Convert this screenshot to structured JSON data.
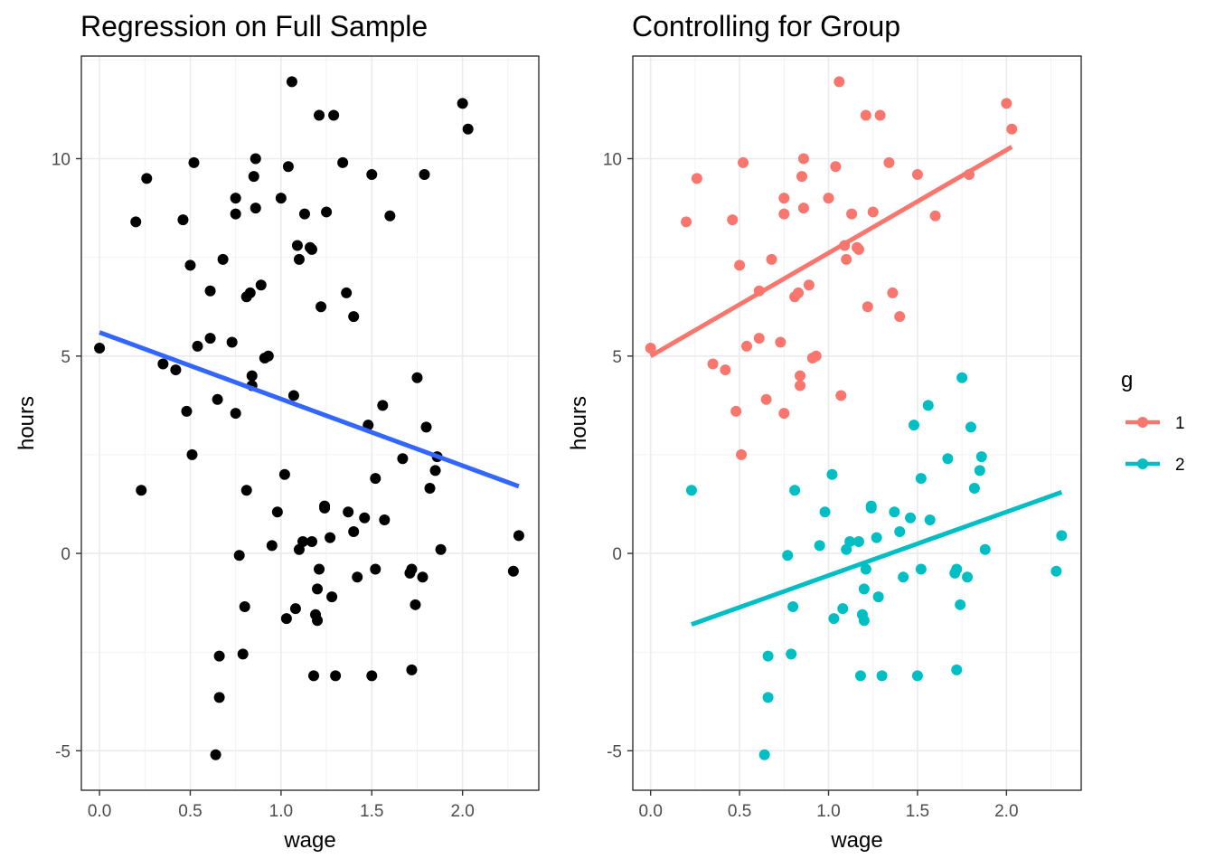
{
  "chart_data": [
    {
      "type": "scatter",
      "title": "Regression on Full Sample",
      "xlabel": "wage",
      "ylabel": "hours",
      "xlim": [
        -0.1,
        2.42
      ],
      "ylim": [
        -6.0,
        12.6
      ],
      "xticks": [
        0.0,
        0.5,
        1.0,
        1.5,
        2.0
      ],
      "xtick_labels": [
        "0.0",
        "0.5",
        "1.0",
        "1.5",
        "2.0"
      ],
      "yticks": [
        -5,
        0,
        5,
        10
      ],
      "ytick_labels": [
        "-5",
        "0",
        "5",
        "10"
      ],
      "grid": true,
      "point_color": "#000000",
      "line_color": "#3366FF",
      "points": [
        [
          0.0,
          5.2
        ],
        [
          0.2,
          8.4
        ],
        [
          0.23,
          1.6
        ],
        [
          0.26,
          9.5
        ],
        [
          0.35,
          4.8
        ],
        [
          0.42,
          4.65
        ],
        [
          0.46,
          8.45
        ],
        [
          0.48,
          3.6
        ],
        [
          0.5,
          7.3
        ],
        [
          0.51,
          2.5
        ],
        [
          0.52,
          9.9
        ],
        [
          0.54,
          5.25
        ],
        [
          0.61,
          6.65
        ],
        [
          0.61,
          5.45
        ],
        [
          0.64,
          -5.1
        ],
        [
          0.65,
          3.9
        ],
        [
          0.66,
          -2.6
        ],
        [
          0.66,
          -3.65
        ],
        [
          0.68,
          7.45
        ],
        [
          0.73,
          5.35
        ],
        [
          0.75,
          9.0
        ],
        [
          0.75,
          8.6
        ],
        [
          0.75,
          3.55
        ],
        [
          0.77,
          -0.05
        ],
        [
          0.79,
          -2.55
        ],
        [
          0.8,
          -1.35
        ],
        [
          0.81,
          6.5
        ],
        [
          0.81,
          1.6
        ],
        [
          0.83,
          6.6
        ],
        [
          0.84,
          4.5
        ],
        [
          0.84,
          4.25
        ],
        [
          0.85,
          9.55
        ],
        [
          0.86,
          10.0
        ],
        [
          0.86,
          8.75
        ],
        [
          0.89,
          6.8
        ],
        [
          0.91,
          4.95
        ],
        [
          0.93,
          5.0
        ],
        [
          0.95,
          0.2
        ],
        [
          0.98,
          1.05
        ],
        [
          1.0,
          9.0
        ],
        [
          1.02,
          2.0
        ],
        [
          1.03,
          -1.65
        ],
        [
          1.04,
          9.8
        ],
        [
          1.06,
          11.95
        ],
        [
          1.07,
          4.0
        ],
        [
          1.08,
          -1.4
        ],
        [
          1.09,
          7.8
        ],
        [
          1.1,
          7.45
        ],
        [
          1.1,
          0.1
        ],
        [
          1.12,
          0.3
        ],
        [
          1.13,
          8.6
        ],
        [
          1.16,
          7.75
        ],
        [
          1.17,
          7.7
        ],
        [
          1.17,
          0.3
        ],
        [
          1.18,
          -3.1
        ],
        [
          1.19,
          -1.55
        ],
        [
          1.2,
          -1.7
        ],
        [
          1.2,
          -0.9
        ],
        [
          1.21,
          -0.4
        ],
        [
          1.21,
          11.1
        ],
        [
          1.22,
          6.25
        ],
        [
          1.24,
          1.15
        ],
        [
          1.24,
          1.2
        ],
        [
          1.25,
          8.65
        ],
        [
          1.27,
          0.4
        ],
        [
          1.28,
          -1.1
        ],
        [
          1.29,
          11.1
        ],
        [
          1.3,
          -3.1
        ],
        [
          1.34,
          9.9
        ],
        [
          1.36,
          6.6
        ],
        [
          1.37,
          1.05
        ],
        [
          1.4,
          6.0
        ],
        [
          1.4,
          0.55
        ],
        [
          1.42,
          -0.6
        ],
        [
          1.46,
          0.9
        ],
        [
          1.48,
          3.25
        ],
        [
          1.5,
          9.6
        ],
        [
          1.5,
          -3.1
        ],
        [
          1.52,
          1.9
        ],
        [
          1.52,
          -0.4
        ],
        [
          1.56,
          3.75
        ],
        [
          1.57,
          0.85
        ],
        [
          1.6,
          8.55
        ],
        [
          1.67,
          2.4
        ],
        [
          1.71,
          -0.5
        ],
        [
          1.72,
          -0.4
        ],
        [
          1.72,
          -2.95
        ],
        [
          1.74,
          -1.3
        ],
        [
          1.75,
          4.45
        ],
        [
          1.78,
          -0.6
        ],
        [
          1.79,
          9.6
        ],
        [
          1.8,
          3.2
        ],
        [
          1.82,
          1.65
        ],
        [
          1.85,
          2.1
        ],
        [
          1.86,
          2.45
        ],
        [
          1.88,
          0.1
        ],
        [
          2.0,
          11.4
        ],
        [
          2.03,
          10.75
        ],
        [
          2.28,
          -0.45
        ],
        [
          2.31,
          0.45
        ]
      ],
      "regression": {
        "x_range": [
          0.0,
          2.31
        ],
        "y_range": [
          5.6,
          1.7
        ]
      }
    },
    {
      "type": "scatter",
      "title": "Controlling for Group",
      "xlabel": "wage",
      "ylabel": "hours",
      "xlim": [
        -0.1,
        2.42
      ],
      "ylim": [
        -6.0,
        12.6
      ],
      "xticks": [
        0.0,
        0.5,
        1.0,
        1.5,
        2.0
      ],
      "xtick_labels": [
        "0.0",
        "0.5",
        "1.0",
        "1.5",
        "2.0"
      ],
      "yticks": [
        -5,
        0,
        5,
        10
      ],
      "ytick_labels": [
        "-5",
        "0",
        "5",
        "10"
      ],
      "grid": true,
      "legend": {
        "title": "g",
        "position": "right",
        "entries": [
          {
            "label": "1",
            "color": "#F8766D"
          },
          {
            "label": "2",
            "color": "#00BFC4"
          }
        ]
      },
      "series": [
        {
          "name": "1",
          "color": "#F8766D",
          "points": [
            [
              0.0,
              5.2
            ],
            [
              0.2,
              8.4
            ],
            [
              0.26,
              9.5
            ],
            [
              0.35,
              4.8
            ],
            [
              0.42,
              4.65
            ],
            [
              0.46,
              8.45
            ],
            [
              0.48,
              3.6
            ],
            [
              0.5,
              7.3
            ],
            [
              0.51,
              2.5
            ],
            [
              0.52,
              9.9
            ],
            [
              0.54,
              5.25
            ],
            [
              0.61,
              6.65
            ],
            [
              0.61,
              5.45
            ],
            [
              0.65,
              3.9
            ],
            [
              0.68,
              7.45
            ],
            [
              0.73,
              5.35
            ],
            [
              0.75,
              9.0
            ],
            [
              0.75,
              8.6
            ],
            [
              0.75,
              3.55
            ],
            [
              0.81,
              6.5
            ],
            [
              0.83,
              6.6
            ],
            [
              0.84,
              4.5
            ],
            [
              0.84,
              4.25
            ],
            [
              0.85,
              9.55
            ],
            [
              0.86,
              10.0
            ],
            [
              0.86,
              8.75
            ],
            [
              0.89,
              6.8
            ],
            [
              0.91,
              4.95
            ],
            [
              0.93,
              5.0
            ],
            [
              1.0,
              9.0
            ],
            [
              1.04,
              9.8
            ],
            [
              1.06,
              11.95
            ],
            [
              1.07,
              4.0
            ],
            [
              1.09,
              7.8
            ],
            [
              1.1,
              7.45
            ],
            [
              1.13,
              8.6
            ],
            [
              1.16,
              7.75
            ],
            [
              1.17,
              7.7
            ],
            [
              1.21,
              11.1
            ],
            [
              1.22,
              6.25
            ],
            [
              1.25,
              8.65
            ],
            [
              1.29,
              11.1
            ],
            [
              1.34,
              9.9
            ],
            [
              1.36,
              6.6
            ],
            [
              1.4,
              6.0
            ],
            [
              1.5,
              9.6
            ],
            [
              1.6,
              8.55
            ],
            [
              1.79,
              9.6
            ],
            [
              2.0,
              11.4
            ],
            [
              2.03,
              10.75
            ]
          ],
          "regression": {
            "x_range": [
              0.0,
              2.03
            ],
            "y_range": [
              5.0,
              10.3
            ]
          }
        },
        {
          "name": "2",
          "color": "#00BFC4",
          "points": [
            [
              0.23,
              1.6
            ],
            [
              0.64,
              -5.1
            ],
            [
              0.66,
              -2.6
            ],
            [
              0.66,
              -3.65
            ],
            [
              0.77,
              -0.05
            ],
            [
              0.79,
              -2.55
            ],
            [
              0.8,
              -1.35
            ],
            [
              0.81,
              1.6
            ],
            [
              0.95,
              0.2
            ],
            [
              0.98,
              1.05
            ],
            [
              1.02,
              2.0
            ],
            [
              1.03,
              -1.65
            ],
            [
              1.08,
              -1.4
            ],
            [
              1.1,
              0.1
            ],
            [
              1.12,
              0.3
            ],
            [
              1.17,
              0.3
            ],
            [
              1.18,
              -3.1
            ],
            [
              1.19,
              -1.55
            ],
            [
              1.2,
              -1.7
            ],
            [
              1.2,
              -0.9
            ],
            [
              1.21,
              -0.4
            ],
            [
              1.24,
              1.15
            ],
            [
              1.24,
              1.2
            ],
            [
              1.27,
              0.4
            ],
            [
              1.28,
              -1.1
            ],
            [
              1.3,
              -3.1
            ],
            [
              1.37,
              1.05
            ],
            [
              1.4,
              0.55
            ],
            [
              1.42,
              -0.6
            ],
            [
              1.46,
              0.9
            ],
            [
              1.48,
              3.25
            ],
            [
              1.5,
              -3.1
            ],
            [
              1.52,
              1.9
            ],
            [
              1.52,
              -0.4
            ],
            [
              1.56,
              3.75
            ],
            [
              1.57,
              0.85
            ],
            [
              1.67,
              2.4
            ],
            [
              1.71,
              -0.5
            ],
            [
              1.72,
              -0.4
            ],
            [
              1.72,
              -2.95
            ],
            [
              1.74,
              -1.3
            ],
            [
              1.75,
              4.45
            ],
            [
              1.78,
              -0.6
            ],
            [
              1.8,
              3.2
            ],
            [
              1.82,
              1.65
            ],
            [
              1.85,
              2.1
            ],
            [
              1.86,
              2.45
            ],
            [
              1.88,
              0.1
            ],
            [
              2.28,
              -0.45
            ],
            [
              2.31,
              0.45
            ]
          ],
          "regression": {
            "x_range": [
              0.23,
              2.31
            ],
            "y_range": [
              -1.8,
              1.55
            ]
          }
        }
      ]
    }
  ]
}
